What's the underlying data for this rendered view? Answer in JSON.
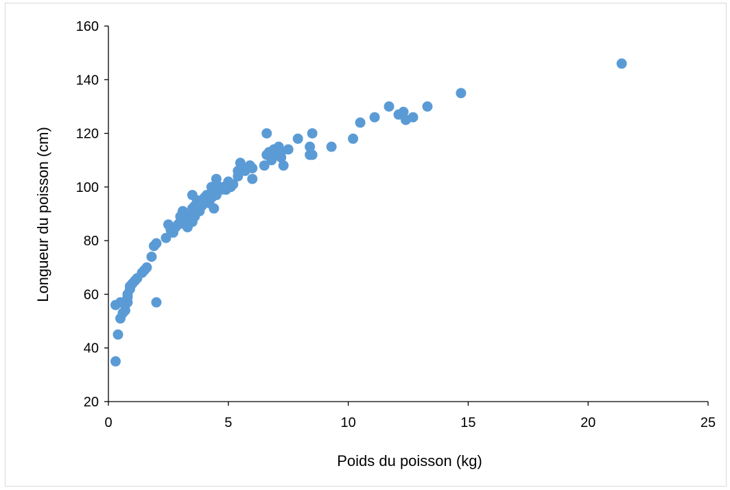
{
  "chart_data": {
    "type": "scatter",
    "title": "",
    "xlabel": "Poids du poisson (kg)",
    "ylabel": "Longueur du poisson (cm)",
    "xlim": [
      0,
      25
    ],
    "ylim": [
      20,
      160
    ],
    "xticks": [
      0,
      5,
      10,
      15,
      20,
      25
    ],
    "yticks": [
      20,
      40,
      60,
      80,
      100,
      120,
      140,
      160
    ],
    "grid": false,
    "legend": "none",
    "marker_color": "#5b9bd5",
    "points": [
      [
        0.3,
        35
      ],
      [
        0.4,
        45
      ],
      [
        0.5,
        51
      ],
      [
        0.3,
        56
      ],
      [
        0.5,
        57
      ],
      [
        0.6,
        53
      ],
      [
        0.7,
        54
      ],
      [
        0.7,
        56
      ],
      [
        0.8,
        57
      ],
      [
        0.8,
        59
      ],
      [
        0.8,
        60
      ],
      [
        0.9,
        62
      ],
      [
        0.9,
        63
      ],
      [
        1.0,
        64
      ],
      [
        1.1,
        65
      ],
      [
        1.2,
        66
      ],
      [
        1.4,
        68
      ],
      [
        1.5,
        69
      ],
      [
        1.6,
        70
      ],
      [
        1.8,
        74
      ],
      [
        1.9,
        78
      ],
      [
        2.0,
        79
      ],
      [
        2.0,
        57
      ],
      [
        2.4,
        81
      ],
      [
        2.5,
        86
      ],
      [
        2.6,
        84
      ],
      [
        2.7,
        83
      ],
      [
        2.8,
        85
      ],
      [
        2.9,
        86
      ],
      [
        3.0,
        87
      ],
      [
        3.0,
        89
      ],
      [
        3.1,
        91
      ],
      [
        3.2,
        86
      ],
      [
        3.3,
        85
      ],
      [
        3.3,
        88
      ],
      [
        3.4,
        90
      ],
      [
        3.5,
        88
      ],
      [
        3.5,
        87
      ],
      [
        3.6,
        89
      ],
      [
        3.5,
        92
      ],
      [
        3.6,
        93
      ],
      [
        3.5,
        97
      ],
      [
        3.7,
        95
      ],
      [
        3.8,
        94
      ],
      [
        3.8,
        91
      ],
      [
        3.9,
        93
      ],
      [
        4.0,
        96
      ],
      [
        4.1,
        95
      ],
      [
        4.1,
        97
      ],
      [
        4.2,
        94
      ],
      [
        4.3,
        96
      ],
      [
        4.3,
        100
      ],
      [
        4.4,
        98
      ],
      [
        4.4,
        92
      ],
      [
        4.5,
        103
      ],
      [
        4.5,
        101
      ],
      [
        4.5,
        97
      ],
      [
        4.6,
        100
      ],
      [
        4.7,
        99
      ],
      [
        4.8,
        100
      ],
      [
        4.9,
        99
      ],
      [
        5.0,
        102
      ],
      [
        5.1,
        100
      ],
      [
        5.2,
        101
      ],
      [
        5.4,
        104
      ],
      [
        5.4,
        106
      ],
      [
        5.5,
        109
      ],
      [
        5.7,
        106
      ],
      [
        5.9,
        108
      ],
      [
        6.0,
        107
      ],
      [
        6.0,
        103
      ],
      [
        6.5,
        108
      ],
      [
        6.6,
        112
      ],
      [
        6.6,
        120
      ],
      [
        6.7,
        113
      ],
      [
        6.8,
        110
      ],
      [
        6.9,
        114
      ],
      [
        7.0,
        112
      ],
      [
        7.1,
        115
      ],
      [
        7.2,
        113
      ],
      [
        7.2,
        111
      ],
      [
        7.3,
        108
      ],
      [
        7.5,
        114
      ],
      [
        7.9,
        118
      ],
      [
        8.4,
        115
      ],
      [
        8.4,
        112
      ],
      [
        8.5,
        120
      ],
      [
        8.5,
        112
      ],
      [
        9.3,
        115
      ],
      [
        10.2,
        118
      ],
      [
        10.5,
        124
      ],
      [
        11.1,
        126
      ],
      [
        11.7,
        130
      ],
      [
        12.1,
        127
      ],
      [
        12.3,
        128
      ],
      [
        12.4,
        125
      ],
      [
        12.7,
        126
      ],
      [
        13.3,
        130
      ],
      [
        14.7,
        135
      ],
      [
        21.4,
        146
      ]
    ]
  }
}
